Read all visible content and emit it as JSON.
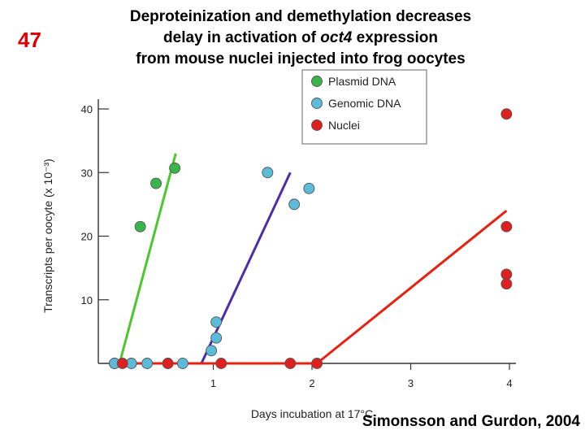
{
  "slide": {
    "number": "47",
    "title_line1": "Deproteinization and demethylation decreases",
    "title_line2_pre": "delay in activation of ",
    "title_line2_em": "oct4",
    "title_line2_post": " expression",
    "title_line3": "from mouse nuclei injected into frog oocytes",
    "citation": "Simonsson and Gurdon, 2004"
  },
  "colors": {
    "plasmid": "#39b54a",
    "genomic": "#5bbbd8",
    "nuclei": "#e01f1f",
    "plasmid_line": "#4cc82a",
    "genomic_line": "#4b2ea8",
    "nuclei_line": "#e82010",
    "slide_number": "#e00000"
  },
  "chart_data": {
    "type": "scatter",
    "xlabel": "Days incubation at 17°C",
    "ylabel": "Transcripts per oocyte (x 10⁻³)",
    "xlim": [
      0,
      4
    ],
    "ylim": [
      0,
      40
    ],
    "xticks": [
      1,
      2,
      3,
      4
    ],
    "yticks": [
      10,
      20,
      30,
      40
    ],
    "legend_position": "top-right",
    "series": [
      {
        "name": "Plasmid DNA",
        "color_key": "plasmid",
        "points": [
          [
            0.0,
            0
          ],
          [
            0.26,
            21.5
          ],
          [
            0.42,
            28.3
          ],
          [
            0.61,
            30.7
          ]
        ],
        "trend": [
          [
            0.05,
            0
          ],
          [
            0.62,
            33
          ]
        ]
      },
      {
        "name": "Genomic DNA",
        "color_key": "genomic",
        "points": [
          [
            0.0,
            0
          ],
          [
            0.17,
            0
          ],
          [
            0.33,
            0
          ],
          [
            0.54,
            0
          ],
          [
            0.69,
            0
          ],
          [
            0.98,
            2
          ],
          [
            1.03,
            4
          ],
          [
            1.03,
            6.5
          ],
          [
            1.55,
            30
          ],
          [
            1.82,
            25
          ],
          [
            1.97,
            27.5
          ]
        ],
        "trend": [
          [
            0.0,
            0
          ],
          [
            0.88,
            0
          ],
          [
            1.78,
            30
          ]
        ]
      },
      {
        "name": "Nuclei",
        "color_key": "nuclei",
        "points": [
          [
            0.08,
            0
          ],
          [
            0.54,
            0
          ],
          [
            1.08,
            0
          ],
          [
            1.78,
            0
          ],
          [
            2.05,
            0
          ],
          [
            3.97,
            39.2
          ],
          [
            3.97,
            21.5
          ],
          [
            3.97,
            14
          ],
          [
            3.97,
            12.5
          ]
        ],
        "trend": [
          [
            0.0,
            0
          ],
          [
            2.05,
            0
          ],
          [
            3.97,
            24
          ]
        ]
      }
    ]
  }
}
